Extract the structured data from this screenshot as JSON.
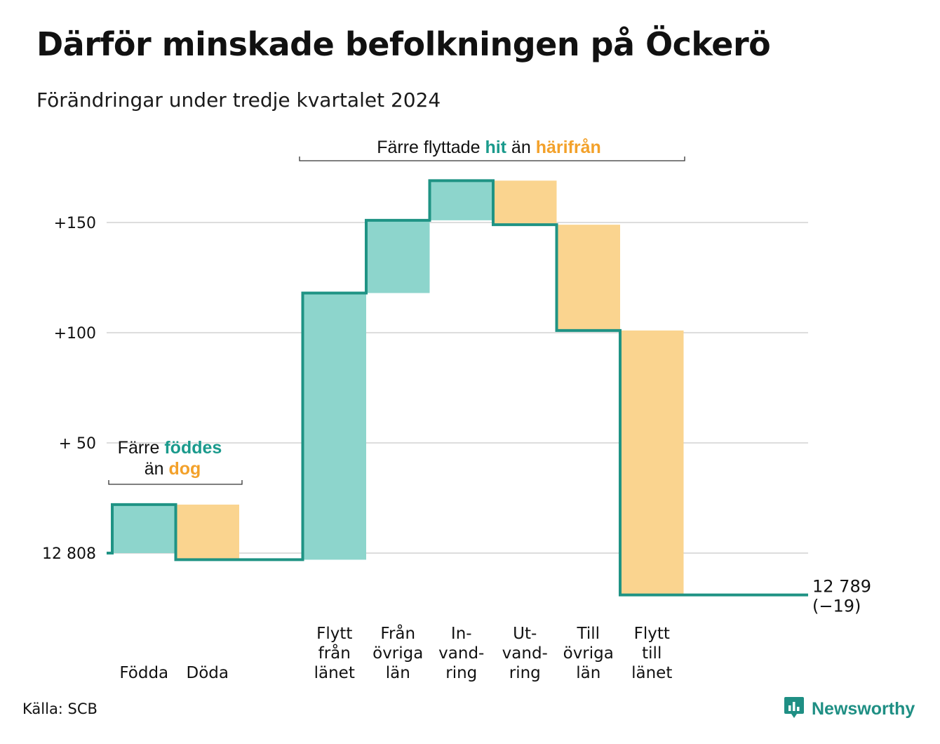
{
  "title": "Därför minskade befolkningen på Öckerö",
  "subtitle": "Förändringar under tredje kvartalet 2024",
  "source": "Källa: SCB",
  "logo": {
    "text": "Newsworthy",
    "icon": "newsworthy-chart-bubble-icon"
  },
  "colors": {
    "inflow": "#8dd5cc",
    "outflow": "#fad48f",
    "line": "#1f9384",
    "accent_teal": "#1a9a8c",
    "accent_orange": "#f3a12a",
    "grid": "#dddddd"
  },
  "chart_data": {
    "type": "waterfall",
    "baseline": 12808,
    "baseline_label": "12 808",
    "final": 12789,
    "final_label": "12 789",
    "final_change_label": "(−19)",
    "yticks": [
      {
        "value": 0,
        "label": "12 808"
      },
      {
        "value": 50,
        "label": "+ 50"
      },
      {
        "value": 100,
        "label": "+100"
      },
      {
        "value": 150,
        "label": "+150"
      }
    ],
    "steps": [
      {
        "label": [
          "Födda"
        ],
        "change": 22,
        "kind": "in"
      },
      {
        "label": [
          "Döda"
        ],
        "change": -25,
        "kind": "out"
      },
      {
        "label": [],
        "change": 0,
        "kind": "gap"
      },
      {
        "label": [
          "Flytt",
          "från",
          "länet"
        ],
        "change": 121,
        "kind": "in"
      },
      {
        "label": [
          "Från",
          "övriga",
          "län"
        ],
        "change": 33,
        "kind": "in"
      },
      {
        "label": [
          "In-",
          "vand-",
          "ring"
        ],
        "change": 18,
        "kind": "in"
      },
      {
        "label": [
          "Ut-",
          "vand-",
          "ring"
        ],
        "change": -20,
        "kind": "out"
      },
      {
        "label": [
          "Till",
          "övriga",
          "län"
        ],
        "change": -48,
        "kind": "out"
      },
      {
        "label": [
          "Flytt",
          "till",
          "länet"
        ],
        "change": -120,
        "kind": "out"
      }
    ],
    "annotations": [
      {
        "text_before": "Färre",
        "highlight1": "föddes",
        "text_middle": "än",
        "highlight2": "dog"
      },
      {
        "text_before": "Färre flyttade",
        "highlight1": "hit",
        "text_middle": "än",
        "highlight2": "härifrån"
      }
    ]
  }
}
